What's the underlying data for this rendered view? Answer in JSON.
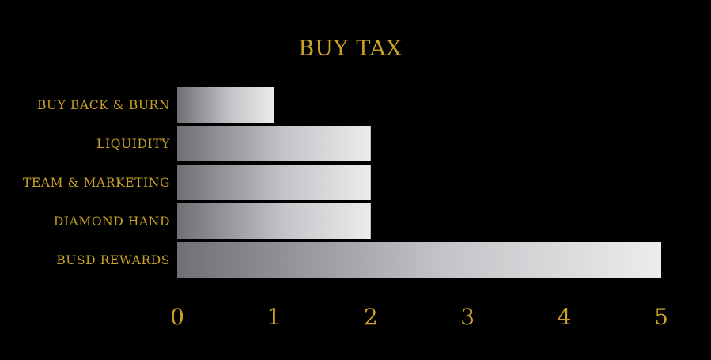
{
  "chart_data": {
    "type": "bar",
    "orientation": "horizontal",
    "title": "BUY TAX",
    "categories": [
      "BUY BACK & BURN",
      "LIQUIDITY",
      "TEAM & MARKETING",
      "DIAMOND HAND",
      "BUSD REWARDS"
    ],
    "values": [
      1,
      2,
      2,
      2,
      5
    ],
    "xlim": [
      0,
      5
    ],
    "xticks": [
      0,
      1,
      2,
      3,
      4,
      5
    ],
    "xlabel": "",
    "ylabel": "",
    "grid": false,
    "legend": "none"
  },
  "colors": {
    "background": "#000000",
    "text_gold": "#C9A227",
    "bar_gradient_start": "#6F7074",
    "bar_gradient_end": "#ECECEE"
  }
}
